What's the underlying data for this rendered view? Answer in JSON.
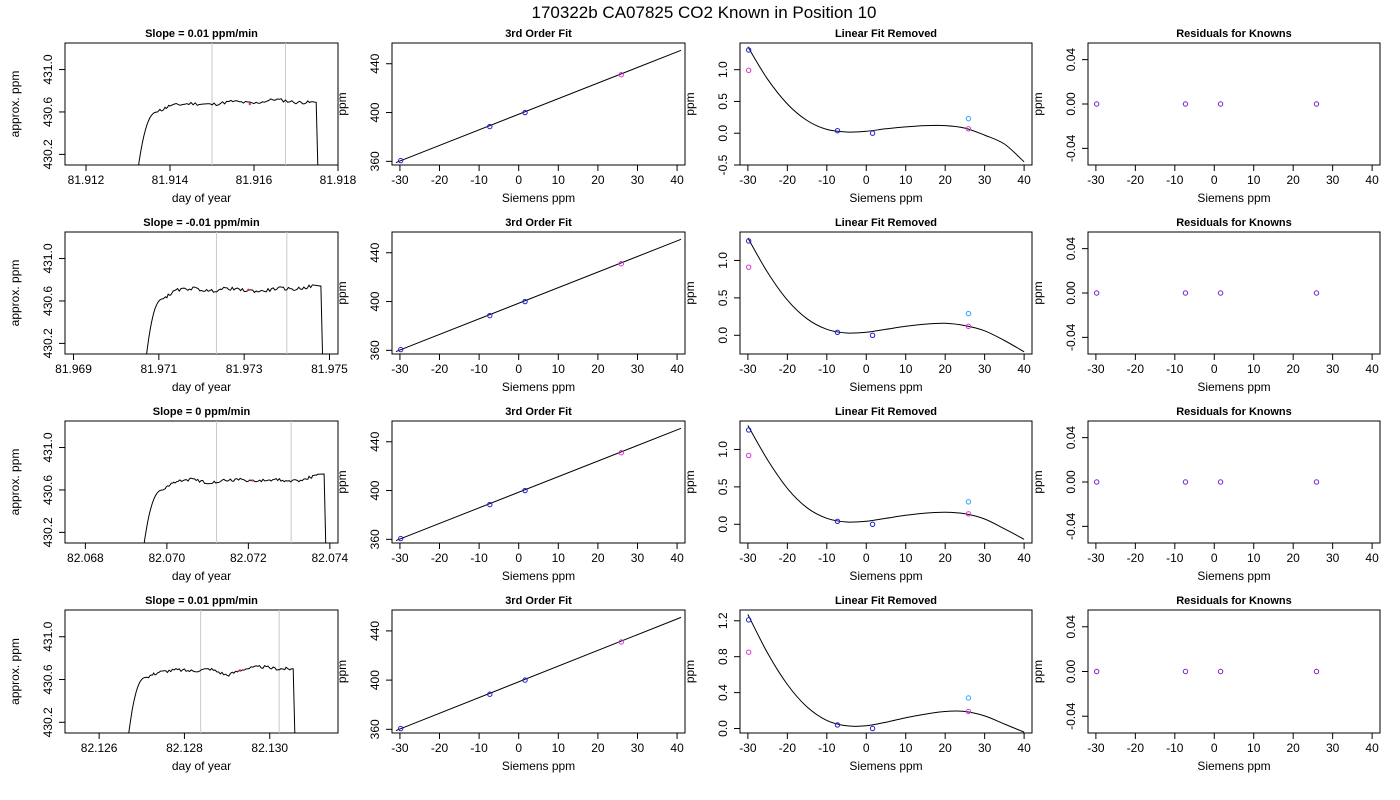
{
  "page_title": "170322b     CA07825   CO2 Known in Position  10",
  "colors": {
    "axis": "#000000",
    "trace": "#000000",
    "marker_lines": "#c8c8c8",
    "points_blue": "#1f1fd0",
    "points_magenta": "#d23cd2",
    "points_cyan": "#2aa6ff",
    "residual_points": "#7a1fd0"
  },
  "chart_data": [
    {
      "type": "line",
      "kind": "trace",
      "title": "Slope =  0.01  ppm/min",
      "xlabel": "day of year",
      "ylabel": "approx. ppm",
      "xlim": [
        81.9115,
        81.918
      ],
      "ylim": [
        430.1,
        431.25
      ],
      "xticks": [
        "81.912",
        "81.914",
        "81.916",
        "81.918"
      ],
      "yticks": [
        "430.2",
        "430.6",
        "431.0"
      ],
      "x_start": 81.9132,
      "x_rise_end": 81.9137,
      "x_end": 81.91748,
      "plateau": 430.675,
      "start_value": 429.95,
      "end_value": 429.95,
      "markers": [
        81.915,
        81.91675
      ],
      "red_mark": 81.9159,
      "bumps": [
        {
          "x": 81.9137,
          "y": 430.6
        },
        {
          "x": 81.914,
          "y": 430.66
        },
        {
          "x": 81.9145,
          "y": 430.68
        },
        {
          "x": 81.915,
          "y": 430.67
        },
        {
          "x": 81.9155,
          "y": 430.7
        },
        {
          "x": 81.916,
          "y": 430.68
        },
        {
          "x": 81.9165,
          "y": 430.72
        },
        {
          "x": 81.917,
          "y": 430.69
        },
        {
          "x": 81.9174,
          "y": 430.69
        }
      ]
    },
    {
      "type": "scatter",
      "kind": "fit",
      "title": "3rd Order Fit",
      "xlabel": "Siemens ppm",
      "ylabel": "ppm",
      "xlim": [
        -32,
        42
      ],
      "ylim": [
        357,
        457
      ],
      "xticks": [
        "-30",
        "-20",
        "-10",
        "0",
        "10",
        "20",
        "30",
        "40"
      ],
      "yticks": [
        "360",
        "400",
        "440"
      ],
      "points_blue": [
        [
          -29.8,
          360.6
        ],
        [
          -7.3,
          388.5
        ],
        [
          1.6,
          400.0
        ]
      ],
      "points_magenta": [
        [
          25.9,
          431.0
        ]
      ],
      "fit_line": [
        [
          -31,
          359.0
        ],
        [
          41,
          451.0
        ]
      ]
    },
    {
      "type": "scatter",
      "kind": "residual_curve",
      "title": "Linear Fit Removed",
      "xlabel": "Siemens ppm",
      "ylabel": "ppm",
      "xlim": [
        -32,
        42
      ],
      "ylim": [
        -0.5,
        1.42
      ],
      "xticks": [
        "-30",
        "-20",
        "-10",
        "0",
        "10",
        "20",
        "30",
        "40"
      ],
      "yticks": [
        "-0.5",
        "0.0",
        "0.5",
        "1.0"
      ],
      "points_blue": [
        [
          -29.8,
          1.31
        ],
        [
          -7.3,
          0.04
        ],
        [
          1.6,
          0.0
        ]
      ],
      "points_magenta": [
        [
          -29.8,
          0.99
        ],
        [
          25.9,
          0.07
        ]
      ],
      "points_cyan": [
        [
          25.9,
          0.23
        ]
      ],
      "curve": [
        [
          -30,
          1.36
        ],
        [
          -25,
          0.85
        ],
        [
          -20,
          0.46
        ],
        [
          -15,
          0.2
        ],
        [
          -10,
          0.06
        ],
        [
          -5,
          0.02
        ],
        [
          0,
          0.03
        ],
        [
          5,
          0.07
        ],
        [
          10,
          0.1
        ],
        [
          15,
          0.12
        ],
        [
          20,
          0.12
        ],
        [
          25,
          0.08
        ],
        [
          30,
          -0.03
        ],
        [
          35,
          -0.17
        ],
        [
          40,
          -0.45
        ]
      ]
    },
    {
      "type": "scatter",
      "kind": "residuals",
      "title": "Residuals for Knowns",
      "xlabel": "Siemens ppm",
      "ylabel": "ppm",
      "xlim": [
        -32,
        42
      ],
      "ylim": [
        -0.055,
        0.055
      ],
      "xticks": [
        "-30",
        "-20",
        "-10",
        "0",
        "10",
        "20",
        "30",
        "40"
      ],
      "yticks": [
        "-0.04",
        "0.00",
        "0.04"
      ],
      "points": [
        [
          -29.8,
          0.0
        ],
        [
          -7.3,
          0.0
        ],
        [
          1.6,
          0.0
        ],
        [
          25.9,
          0.0
        ]
      ]
    },
    {
      "type": "line",
      "kind": "trace",
      "title": "Slope =  -0.01  ppm/min",
      "xlabel": "day of year",
      "ylabel": "approx. ppm",
      "xlim": [
        81.9688,
        81.9752
      ],
      "ylim": [
        430.1,
        431.25
      ],
      "xticks": [
        "81.969",
        "81.971",
        "81.973",
        "81.975"
      ],
      "yticks": [
        "430.2",
        "430.6",
        "431.0"
      ],
      "x_start": 81.97067,
      "x_rise_end": 81.9711,
      "x_end": 81.9748,
      "plateau": 430.705,
      "start_value": 429.95,
      "end_value": 429.95,
      "markers": [
        81.97235,
        81.974
      ],
      "red_mark": 81.9731,
      "bumps": [
        {
          "x": 81.9711,
          "y": 430.62
        },
        {
          "x": 81.9714,
          "y": 430.7
        },
        {
          "x": 81.9718,
          "y": 430.72
        },
        {
          "x": 81.9722,
          "y": 430.69
        },
        {
          "x": 81.9726,
          "y": 430.72
        },
        {
          "x": 81.973,
          "y": 430.7
        },
        {
          "x": 81.9734,
          "y": 430.69
        },
        {
          "x": 81.9738,
          "y": 430.72
        },
        {
          "x": 81.9742,
          "y": 430.71
        },
        {
          "x": 81.9746,
          "y": 430.74
        }
      ]
    },
    {
      "type": "scatter",
      "kind": "fit",
      "title": "3rd Order Fit",
      "xlabel": "Siemens ppm",
      "ylabel": "ppm",
      "xlim": [
        -32,
        42
      ],
      "ylim": [
        357,
        457
      ],
      "xticks": [
        "-30",
        "-20",
        "-10",
        "0",
        "10",
        "20",
        "30",
        "40"
      ],
      "yticks": [
        "360",
        "400",
        "440"
      ],
      "points_blue": [
        [
          -29.8,
          360.6
        ],
        [
          -7.3,
          388.5
        ],
        [
          1.6,
          400.0
        ]
      ],
      "points_magenta": [
        [
          25.9,
          431.0
        ]
      ],
      "fit_line": [
        [
          -31,
          359.0
        ],
        [
          41,
          451.0
        ]
      ]
    },
    {
      "type": "scatter",
      "kind": "residual_curve",
      "title": "Linear Fit Removed",
      "xlabel": "Siemens ppm",
      "ylabel": "ppm",
      "xlim": [
        -32,
        42
      ],
      "ylim": [
        -0.25,
        1.38
      ],
      "xticks": [
        "-30",
        "-20",
        "-10",
        "0",
        "10",
        "20",
        "30",
        "40"
      ],
      "yticks": [
        "0.0",
        "0.5",
        "1.0"
      ],
      "points_blue": [
        [
          -29.8,
          1.26
        ],
        [
          -7.3,
          0.04
        ],
        [
          1.6,
          0.0
        ]
      ],
      "points_magenta": [
        [
          -29.8,
          0.91
        ],
        [
          25.9,
          0.12
        ]
      ],
      "points_cyan": [
        [
          25.9,
          0.29
        ]
      ],
      "curve": [
        [
          -30,
          1.3
        ],
        [
          -25,
          0.84
        ],
        [
          -20,
          0.47
        ],
        [
          -15,
          0.22
        ],
        [
          -10,
          0.08
        ],
        [
          -5,
          0.03
        ],
        [
          0,
          0.04
        ],
        [
          5,
          0.08
        ],
        [
          10,
          0.12
        ],
        [
          15,
          0.15
        ],
        [
          20,
          0.16
        ],
        [
          25,
          0.13
        ],
        [
          30,
          0.06
        ],
        [
          35,
          -0.07
        ],
        [
          40,
          -0.22
        ]
      ]
    },
    {
      "type": "scatter",
      "kind": "residuals",
      "title": "Residuals for Knowns",
      "xlabel": "Siemens ppm",
      "ylabel": "ppm",
      "xlim": [
        -32,
        42
      ],
      "ylim": [
        -0.055,
        0.055
      ],
      "xticks": [
        "-30",
        "-20",
        "-10",
        "0",
        "10",
        "20",
        "30",
        "40"
      ],
      "yticks": [
        "-0.04",
        "0.00",
        "0.04"
      ],
      "points": [
        [
          -29.8,
          0.0
        ],
        [
          -7.3,
          0.0
        ],
        [
          1.6,
          0.0
        ],
        [
          25.9,
          0.0
        ]
      ]
    },
    {
      "type": "line",
      "kind": "trace",
      "title": "Slope =  0  ppm/min",
      "xlabel": "day of year",
      "ylabel": "approx. ppm",
      "xlim": [
        82.0675,
        82.0742
      ],
      "ylim": [
        430.1,
        431.25
      ],
      "xticks": [
        "82.068",
        "82.070",
        "82.072",
        "82.074"
      ],
      "yticks": [
        "430.2",
        "430.6",
        "431.0"
      ],
      "x_start": 82.06939,
      "x_rise_end": 82.0699,
      "x_end": 82.07386,
      "plateau": 430.69,
      "start_value": 429.95,
      "end_value": 429.95,
      "markers": [
        82.07122,
        82.07305
      ],
      "red_mark": 82.0721,
      "bumps": [
        {
          "x": 82.0699,
          "y": 430.6
        },
        {
          "x": 82.0702,
          "y": 430.68
        },
        {
          "x": 82.0706,
          "y": 430.7
        },
        {
          "x": 82.071,
          "y": 430.67
        },
        {
          "x": 82.0714,
          "y": 430.69
        },
        {
          "x": 82.0718,
          "y": 430.7
        },
        {
          "x": 82.0722,
          "y": 430.68
        },
        {
          "x": 82.0726,
          "y": 430.7
        },
        {
          "x": 82.073,
          "y": 430.68
        },
        {
          "x": 82.0734,
          "y": 430.7
        },
        {
          "x": 82.0737,
          "y": 430.75
        }
      ]
    },
    {
      "type": "scatter",
      "kind": "fit",
      "title": "3rd Order Fit",
      "xlabel": "Siemens ppm",
      "ylabel": "ppm",
      "xlim": [
        -32,
        42
      ],
      "ylim": [
        357,
        457
      ],
      "xticks": [
        "-30",
        "-20",
        "-10",
        "0",
        "10",
        "20",
        "30",
        "40"
      ],
      "yticks": [
        "360",
        "400",
        "440"
      ],
      "points_blue": [
        [
          -29.8,
          360.6
        ],
        [
          -7.3,
          388.5
        ],
        [
          1.6,
          400.0
        ]
      ],
      "points_magenta": [
        [
          25.9,
          431.0
        ]
      ],
      "fit_line": [
        [
          -31,
          359.0
        ],
        [
          41,
          451.0
        ]
      ]
    },
    {
      "type": "scatter",
      "kind": "residual_curve",
      "title": "Linear Fit Removed",
      "xlabel": "Siemens ppm",
      "ylabel": "ppm",
      "xlim": [
        -32,
        42
      ],
      "ylim": [
        -0.25,
        1.38
      ],
      "xticks": [
        "-30",
        "-20",
        "-10",
        "0",
        "10",
        "20",
        "30",
        "40"
      ],
      "yticks": [
        "0.0",
        "0.5",
        "1.0"
      ],
      "points_blue": [
        [
          -29.8,
          1.26
        ],
        [
          -7.3,
          0.04
        ],
        [
          1.6,
          0.0
        ]
      ],
      "points_magenta": [
        [
          -29.8,
          0.92
        ],
        [
          25.9,
          0.14
        ]
      ],
      "points_cyan": [
        [
          25.9,
          0.3
        ]
      ],
      "curve": [
        [
          -30,
          1.32
        ],
        [
          -25,
          0.86
        ],
        [
          -20,
          0.48
        ],
        [
          -15,
          0.22
        ],
        [
          -10,
          0.08
        ],
        [
          -5,
          0.03
        ],
        [
          0,
          0.04
        ],
        [
          5,
          0.08
        ],
        [
          10,
          0.12
        ],
        [
          15,
          0.15
        ],
        [
          20,
          0.16
        ],
        [
          25,
          0.14
        ],
        [
          30,
          0.07
        ],
        [
          35,
          -0.06
        ],
        [
          40,
          -0.2
        ]
      ]
    },
    {
      "type": "scatter",
      "kind": "residuals",
      "title": "Residuals for Knowns",
      "xlabel": "Siemens ppm",
      "ylabel": "ppm",
      "xlim": [
        -32,
        42
      ],
      "ylim": [
        -0.055,
        0.055
      ],
      "xticks": [
        "-30",
        "-20",
        "-10",
        "0",
        "10",
        "20",
        "30",
        "40"
      ],
      "yticks": [
        "-0.04",
        "0.00",
        "0.04"
      ],
      "points": [
        [
          -29.8,
          0.0
        ],
        [
          -7.3,
          0.0
        ],
        [
          1.6,
          0.0
        ],
        [
          25.9,
          0.0
        ]
      ]
    },
    {
      "type": "line",
      "kind": "trace",
      "title": "Slope =  0.01  ppm/min",
      "xlabel": "day of year",
      "ylabel": "approx. ppm",
      "xlim": [
        82.1252,
        82.1316
      ],
      "ylim": [
        430.1,
        431.25
      ],
      "xticks": [
        "82.126",
        "82.128",
        "82.130"
      ],
      "yticks": [
        "430.2",
        "430.6",
        "431.0"
      ],
      "x_start": 82.12665,
      "x_rise_end": 82.1271,
      "x_end": 82.13055,
      "plateau": 430.685,
      "start_value": 429.95,
      "end_value": 429.95,
      "markers": [
        82.12838,
        82.13022
      ],
      "red_mark": 82.1293,
      "bumps": [
        {
          "x": 82.1271,
          "y": 430.62
        },
        {
          "x": 82.1274,
          "y": 430.67
        },
        {
          "x": 82.1278,
          "y": 430.69
        },
        {
          "x": 82.1282,
          "y": 430.68
        },
        {
          "x": 82.1286,
          "y": 430.7
        },
        {
          "x": 82.129,
          "y": 430.64
        },
        {
          "x": 82.1294,
          "y": 430.7
        },
        {
          "x": 82.1298,
          "y": 430.72
        },
        {
          "x": 82.1302,
          "y": 430.7
        },
        {
          "x": 82.1305,
          "y": 430.7
        }
      ]
    },
    {
      "type": "scatter",
      "kind": "fit",
      "title": "3rd Order Fit",
      "xlabel": "Siemens ppm",
      "ylabel": "ppm",
      "xlim": [
        -32,
        42
      ],
      "ylim": [
        357,
        457
      ],
      "xticks": [
        "-30",
        "-20",
        "-10",
        "0",
        "10",
        "20",
        "30",
        "40"
      ],
      "yticks": [
        "360",
        "400",
        "440"
      ],
      "points_blue": [
        [
          -29.8,
          360.6
        ],
        [
          -7.3,
          388.5
        ],
        [
          1.6,
          400.0
        ]
      ],
      "points_magenta": [
        [
          25.9,
          431.0
        ]
      ],
      "fit_line": [
        [
          -31,
          359.0
        ],
        [
          41,
          451.0
        ]
      ]
    },
    {
      "type": "scatter",
      "kind": "residual_curve",
      "title": "Linear Fit Removed",
      "xlabel": "Siemens ppm",
      "ylabel": "ppm",
      "xlim": [
        -32,
        42
      ],
      "ylim": [
        -0.05,
        1.32
      ],
      "xticks": [
        "-30",
        "-20",
        "-10",
        "0",
        "10",
        "20",
        "30",
        "40"
      ],
      "yticks": [
        "0.0",
        "0.4",
        "0.8",
        "1.2"
      ],
      "points_blue": [
        [
          -29.8,
          1.21
        ],
        [
          -7.3,
          0.04
        ],
        [
          1.6,
          0.0
        ]
      ],
      "points_magenta": [
        [
          -29.8,
          0.85
        ],
        [
          25.9,
          0.19
        ]
      ],
      "points_cyan": [
        [
          25.9,
          0.34
        ]
      ],
      "curve": [
        [
          -30,
          1.27
        ],
        [
          -25,
          0.84
        ],
        [
          -20,
          0.49
        ],
        [
          -15,
          0.24
        ],
        [
          -10,
          0.09
        ],
        [
          -5,
          0.03
        ],
        [
          0,
          0.03
        ],
        [
          5,
          0.07
        ],
        [
          10,
          0.12
        ],
        [
          15,
          0.16
        ],
        [
          20,
          0.19
        ],
        [
          25,
          0.19
        ],
        [
          30,
          0.14
        ],
        [
          35,
          0.05
        ],
        [
          40,
          -0.04
        ]
      ]
    },
    {
      "type": "scatter",
      "kind": "residuals",
      "title": "Residuals for Knowns",
      "xlabel": "Siemens ppm",
      "ylabel": "ppm",
      "xlim": [
        -32,
        42
      ],
      "ylim": [
        -0.055,
        0.055
      ],
      "xticks": [
        "-30",
        "-20",
        "-10",
        "0",
        "10",
        "20",
        "30",
        "40"
      ],
      "yticks": [
        "-0.04",
        "0.00",
        "0.04"
      ],
      "points": [
        [
          -29.8,
          0.0
        ],
        [
          -7.3,
          0.0
        ],
        [
          1.6,
          0.0
        ],
        [
          25.9,
          0.0
        ]
      ]
    }
  ]
}
